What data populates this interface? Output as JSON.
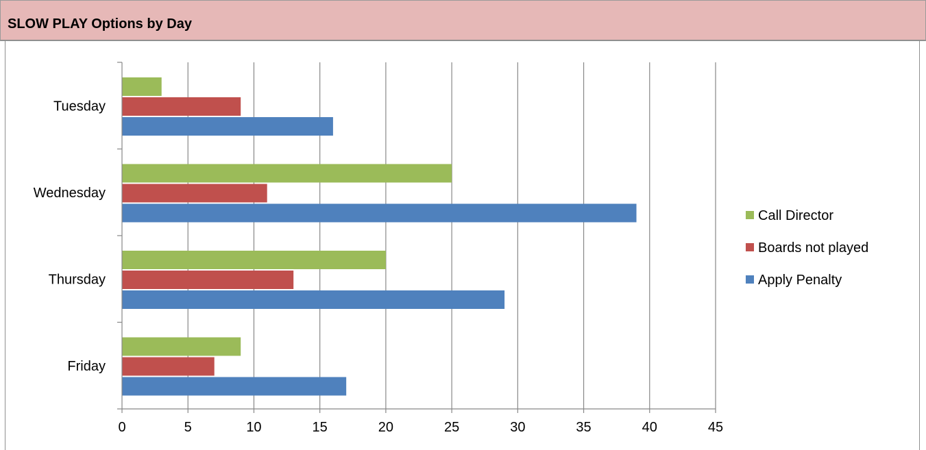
{
  "header": {
    "title": "SLOW PLAY Options by Day",
    "background": "#e6b8b7"
  },
  "chart_data": {
    "type": "bar",
    "orientation": "horizontal",
    "title": "",
    "xlabel": "",
    "ylabel": "",
    "categories": [
      "Tuesday",
      "Wednesday",
      "Thursday",
      "Friday"
    ],
    "series": [
      {
        "name": "Call Director",
        "color": "#9bbb59",
        "values": [
          3,
          25,
          20,
          9
        ]
      },
      {
        "name": "Boards not played",
        "color": "#c0504d",
        "values": [
          9,
          11,
          13,
          7
        ]
      },
      {
        "name": "Apply Penalty",
        "color": "#4f81bd",
        "values": [
          16,
          39,
          29,
          17
        ]
      }
    ],
    "xlim": [
      0,
      45
    ],
    "x_ticks": [
      "0",
      "5",
      "10",
      "15",
      "20",
      "25",
      "30",
      "35",
      "40",
      "45"
    ],
    "grid": "vertical",
    "legend": "right"
  }
}
